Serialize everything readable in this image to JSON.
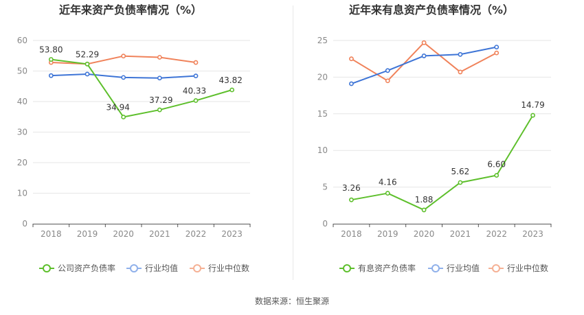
{
  "source": "数据来源：恒生聚源",
  "chart_data": [
    {
      "type": "line",
      "title": "近年来资产负债率情况（%）",
      "categories": [
        "2018",
        "2019",
        "2020",
        "2021",
        "2022",
        "2023"
      ],
      "ylim": [
        0,
        60
      ],
      "yticks": [
        0,
        10,
        20,
        30,
        40,
        50,
        60
      ],
      "grid": true,
      "legend_position": "bottom",
      "series": [
        {
          "name": "公司资产负债率",
          "color": "#5dbf2b",
          "values": [
            53.8,
            52.29,
            34.94,
            37.29,
            40.33,
            43.82
          ],
          "labels": [
            "53.80",
            "52.29",
            "34.94",
            "37.29",
            "40.33",
            "43.82"
          ]
        },
        {
          "name": "行业均值",
          "color": "#3d74d6",
          "values": [
            48.5,
            49.0,
            47.9,
            47.7,
            48.4,
            null
          ],
          "labels": []
        },
        {
          "name": "行业中位数",
          "color": "#f0825a",
          "values": [
            52.8,
            52.3,
            54.9,
            54.5,
            52.8,
            null
          ],
          "labels": []
        }
      ]
    },
    {
      "type": "line",
      "title": "近年来有息资产负债率情况（%）",
      "categories": [
        "2018",
        "2019",
        "2020",
        "2021",
        "2022",
        "2023"
      ],
      "ylim": [
        0,
        25
      ],
      "yticks": [
        0,
        5,
        10,
        15,
        20,
        25
      ],
      "grid": true,
      "legend_position": "bottom",
      "series": [
        {
          "name": "有息资产负债率",
          "color": "#5dbf2b",
          "values": [
            3.26,
            4.16,
            1.88,
            5.62,
            6.6,
            14.79
          ],
          "labels": [
            "3.26",
            "4.16",
            "1.88",
            "5.62",
            "6.60",
            "14.79"
          ]
        },
        {
          "name": "行业均值",
          "color": "#3d74d6",
          "values": [
            19.1,
            20.9,
            22.9,
            23.1,
            24.1,
            null
          ],
          "labels": []
        },
        {
          "name": "行业中位数",
          "color": "#f0825a",
          "values": [
            22.5,
            19.5,
            24.7,
            20.7,
            23.3,
            null
          ],
          "labels": []
        }
      ]
    }
  ]
}
